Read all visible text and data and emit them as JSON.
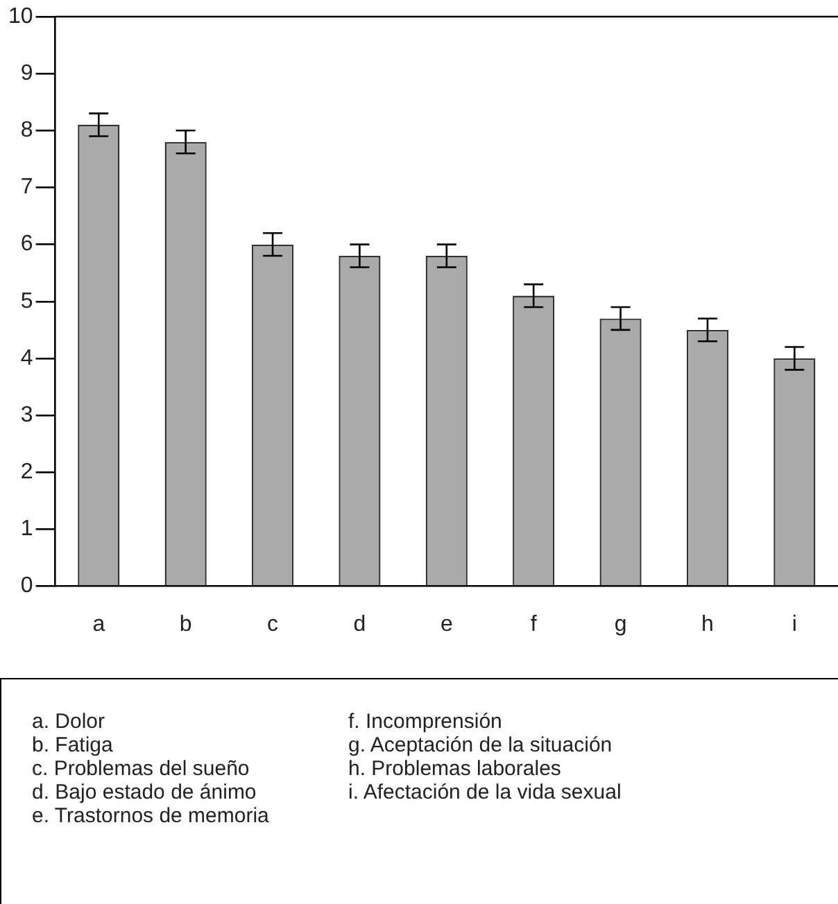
{
  "chart_data": {
    "type": "bar",
    "categories": [
      "a",
      "b",
      "c",
      "d",
      "e",
      "f",
      "g",
      "h",
      "i"
    ],
    "values": [
      8.1,
      7.8,
      6.0,
      5.8,
      5.8,
      5.1,
      4.7,
      4.5,
      4.0
    ],
    "errors": [
      0.2,
      0.2,
      0.2,
      0.2,
      0.2,
      0.2,
      0.2,
      0.2,
      0.2
    ],
    "color": "#aaaaaa",
    "ylim": [
      0,
      10
    ],
    "yticks": [
      0,
      1,
      2,
      3,
      4,
      5,
      6,
      7,
      8,
      9,
      10
    ],
    "annotations": [
      "a. Dolor",
      "b. Fatiga",
      "c. Problemas del sueño",
      "d. Bajo estado de ánimo",
      "e. Trastornos de memoria",
      "f. Incomprensión",
      "g. Aceptación de la situación",
      "h. Problemas laborales",
      "i. Afectación de la vida sexual"
    ]
  }
}
